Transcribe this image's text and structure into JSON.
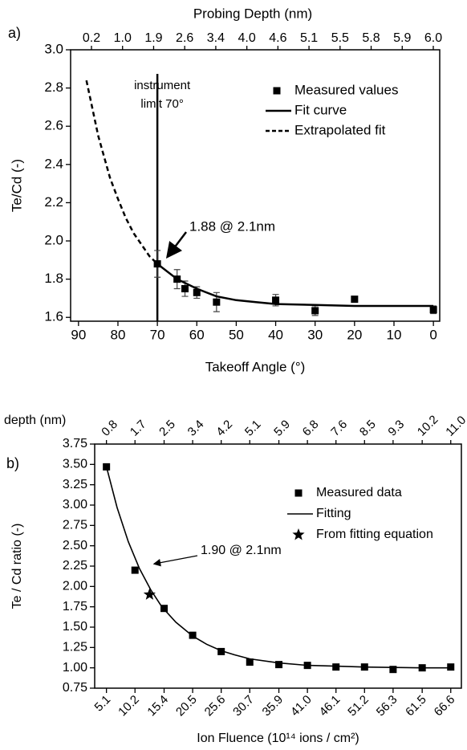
{
  "chart_data": [
    {
      "type": "scatter",
      "panel": "a)",
      "top_label": "Probing Depth (nm)",
      "x_label": "Takeoff Angle (°)",
      "y_label": "Te/Cd (-)",
      "xlim": [
        92,
        -1.6
      ],
      "xticks": [
        90,
        80,
        70,
        60,
        50,
        40,
        30,
        20,
        10,
        0
      ],
      "ylim": [
        1.58,
        3.0
      ],
      "yticks": [
        1.6,
        1.8,
        {
          "value": 2,
          "label": "2.0"
        },
        2.2,
        2.4,
        2.6,
        2.8,
        {
          "value": 3,
          "label": "3.0"
        }
      ],
      "top_ticks": [
        0.2,
        {
          "value": 1,
          "label": "1.0"
        },
        1.9,
        2.6,
        3.4,
        {
          "value": 4,
          "label": "4.0"
        },
        4.6,
        5.1,
        5.5,
        5.8,
        5.9,
        {
          "value": 6,
          "label": "6.0"
        }
      ],
      "top_ticks_align": "even",
      "vline": 70,
      "vline_label": [
        "instrument",
        "limit 70°"
      ],
      "annotation": "1.88 @ 2.1nm",
      "legend": "upper right",
      "series": [
        {
          "name": "Measured values",
          "style": "square",
          "color": "#000000",
          "x": [
            70,
            65,
            63,
            60,
            55,
            40,
            30,
            20,
            0
          ],
          "values": [
            1.88,
            1.8,
            1.75,
            1.73,
            1.68,
            1.69,
            1.635,
            1.695,
            1.64
          ],
          "errors": [
            0.07,
            0.05,
            0.04,
            0.03,
            0.05,
            0.03,
            0.025,
            0.015,
            0.02
          ]
        },
        {
          "name": "Fit curve",
          "style": "line",
          "color": "#000000",
          "x": [
            70,
            65,
            60,
            55,
            50,
            45,
            40,
            30,
            20,
            10,
            0
          ],
          "values": [
            1.88,
            1.8,
            1.75,
            1.71,
            1.69,
            1.68,
            1.67,
            1.665,
            1.66,
            1.66,
            1.66
          ]
        },
        {
          "name": "Extrapolated fit",
          "style": "dashed",
          "color": "#000000",
          "x": [
            88,
            85,
            82,
            80,
            78,
            76,
            74,
            72,
            70
          ],
          "values": [
            2.84,
            2.55,
            2.33,
            2.22,
            2.12,
            2.04,
            1.98,
            1.92,
            1.88
          ]
        }
      ]
    },
    {
      "type": "scatter",
      "panel": "b)",
      "top_label": "depth (nm)",
      "x_label": "Ion Fluence (10¹⁴ ions / cm²)",
      "y_label": "Te / Cd ratio (-)",
      "xlim": [
        3,
        68.5
      ],
      "xticks": [
        5.1,
        10.2,
        15.4,
        20.5,
        25.6,
        30.7,
        35.9,
        {
          "value": 41,
          "label": "41.0"
        },
        46.1,
        51.2,
        56.3,
        61.5,
        66.6
      ],
      "ylim": [
        0.75,
        3.75
      ],
      "yticks": [
        0.75,
        {
          "value": 1,
          "label": "1.00"
        },
        1.25,
        {
          "value": 1.5,
          "label": "1.50"
        },
        1.75,
        {
          "value": 2,
          "label": "2.00"
        },
        2.25,
        {
          "value": 2.5,
          "label": "2.50"
        },
        2.75,
        {
          "value": 3,
          "label": "3.00"
        },
        3.25,
        {
          "value": 3.5,
          "label": "3.50"
        },
        3.75
      ],
      "top_ticks": [
        0.8,
        1.7,
        2.5,
        3.4,
        4.2,
        5.1,
        5.9,
        6.8,
        7.6,
        8.5,
        9.3,
        10.2,
        {
          "value": 11,
          "label": "11.0"
        }
      ],
      "top_ticks_align": "xticks",
      "annotation": "1.90 @ 2.1nm",
      "legend": "center right",
      "series": [
        {
          "name": "Measured data",
          "style": "square",
          "color": "#000000",
          "x": [
            5.1,
            10.2,
            15.4,
            20.5,
            25.6,
            30.7,
            35.9,
            41,
            46.1,
            51.2,
            56.3,
            61.5,
            66.6
          ],
          "values": [
            3.47,
            2.2,
            1.73,
            1.4,
            1.2,
            1.07,
            1.04,
            1.03,
            1.01,
            1.01,
            0.98,
            1.0,
            1.01
          ]
        },
        {
          "name": "Fitting",
          "style": "line",
          "color": "#000000",
          "x": [
            5.1,
            7,
            9,
            11,
            13,
            15,
            17.5,
            20.5,
            23,
            25.6,
            28,
            30.7,
            35.9,
            41,
            46.1,
            51.2,
            56.3,
            61.5,
            66.6
          ],
          "values": [
            3.47,
            2.97,
            2.55,
            2.22,
            1.96,
            1.75,
            1.56,
            1.39,
            1.29,
            1.21,
            1.16,
            1.11,
            1.06,
            1.03,
            1.02,
            1.01,
            1.005,
            1.0,
            1.0
          ]
        },
        {
          "name": "From fitting equation",
          "style": "star",
          "color": "#000000",
          "x": [
            12.8
          ],
          "values": [
            1.9
          ]
        }
      ]
    }
  ]
}
